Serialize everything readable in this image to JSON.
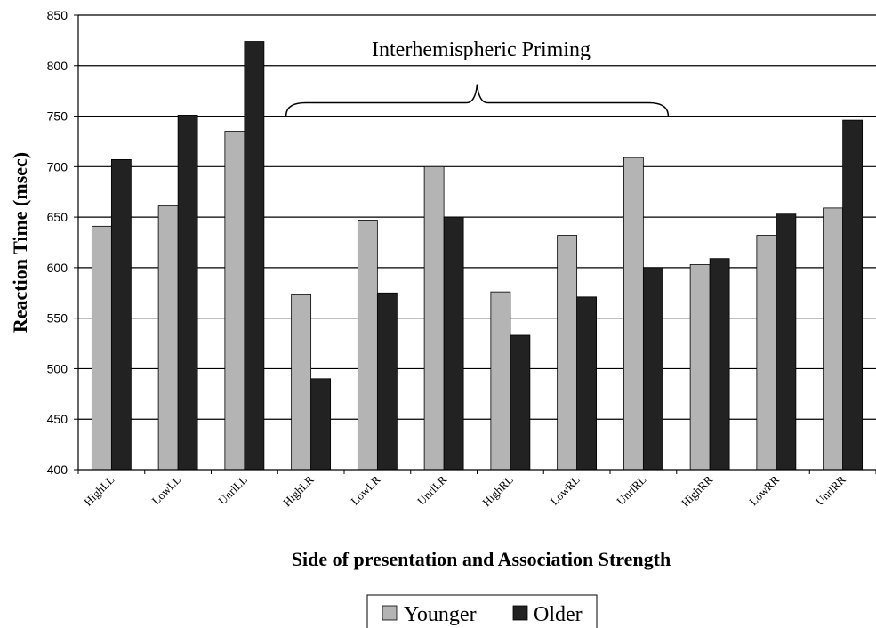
{
  "chart_data": {
    "type": "bar",
    "categories": [
      "HighLL",
      "LowLL",
      "UnrlLL",
      "HighLR",
      "LowLR",
      "UnrlLR",
      "HighRL",
      "LowRL",
      "UnrlRL",
      "HighRR",
      "LowRR",
      "UnrlRR"
    ],
    "series": [
      {
        "name": "Younger",
        "color": "#b4b4b4",
        "values": [
          641,
          661,
          735,
          573,
          647,
          700,
          576,
          632,
          709,
          603,
          632,
          659
        ]
      },
      {
        "name": "Older",
        "color": "#222222",
        "values": [
          707,
          751,
          824,
          490,
          575,
          650,
          533,
          571,
          600,
          609,
          653,
          746
        ]
      }
    ],
    "title": "",
    "xlabel": "Side of presentation and Association Strength",
    "ylabel": "Reaction Time (msec)",
    "ylim": [
      400,
      850
    ],
    "yticks": [
      400,
      450,
      500,
      550,
      600,
      650,
      700,
      750,
      800,
      850
    ],
    "grid": true,
    "legend_position": "bottom",
    "annotation": {
      "text": "Interhemispheric Priming",
      "span_categories": [
        "HighLR",
        "UnrlRL"
      ],
      "level": 750
    }
  }
}
